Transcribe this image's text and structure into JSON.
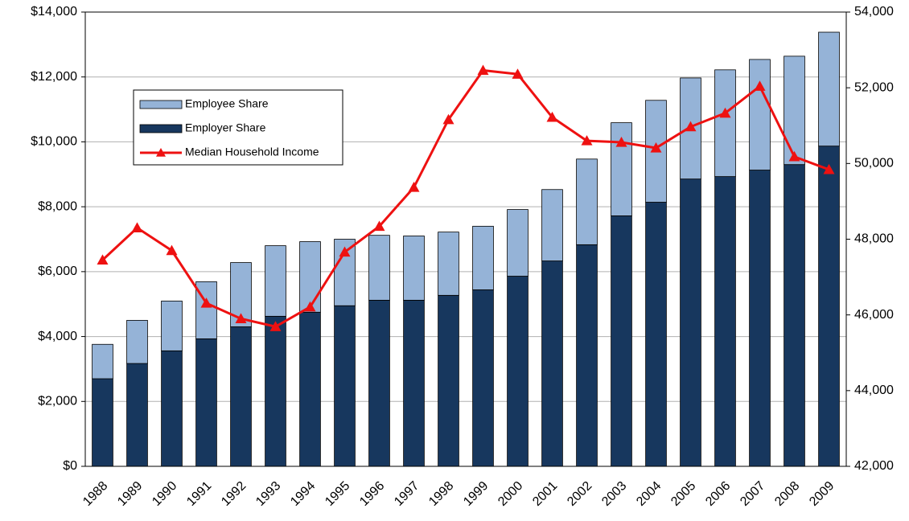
{
  "chart_data": {
    "type": "bar",
    "categories": [
      "1988",
      "1989",
      "1990",
      "1991",
      "1992",
      "1993",
      "1994",
      "1995",
      "1996",
      "1997",
      "1998",
      "1999",
      "2000",
      "2001",
      "2002",
      "2003",
      "2004",
      "2005",
      "2006",
      "2007",
      "2008",
      "2009"
    ],
    "series": [
      {
        "name": "Employer Share",
        "color": "#17375e",
        "values": [
          2700,
          3170,
          3560,
          3930,
          4300,
          4625,
          4750,
          4950,
          5120,
          5120,
          5270,
          5440,
          5860,
          6330,
          6830,
          7720,
          8140,
          8855,
          8930,
          9130,
          9300,
          9870
        ]
      },
      {
        "name": "Employee Share",
        "color": "#95b3d7",
        "values": [
          1060,
          1330,
          1535,
          1760,
          1980,
          2175,
          2175,
          2050,
          2000,
          1980,
          1950,
          1960,
          2055,
          2200,
          2640,
          2870,
          3140,
          3115,
          3290,
          3410,
          3340,
          3510
        ]
      },
      {
        "name": "Median Household Income",
        "color": "#ee1111",
        "type": "line",
        "axis": "y2",
        "values": [
          47450,
          48300,
          47700,
          46310,
          45900,
          45690,
          46210,
          47660,
          48340,
          49370,
          51160,
          52460,
          52360,
          51220,
          50600,
          50560,
          50410,
          50970,
          51330,
          52040,
          50180,
          49840
        ]
      }
    ],
    "stacked": true,
    "legend_order": [
      "Employee Share",
      "Employer Share",
      "Median Household Income"
    ],
    "ylim": [
      0,
      14000
    ],
    "yticks": [
      {
        "value": 0,
        "label": "$0"
      },
      {
        "value": 2000,
        "label": "$2,000"
      },
      {
        "value": 4000,
        "label": "$4,000"
      },
      {
        "value": 6000,
        "label": "$6,000"
      },
      {
        "value": 8000,
        "label": "$8,000"
      },
      {
        "value": 10000,
        "label": "$10,000"
      },
      {
        "value": 12000,
        "label": "$12,000"
      },
      {
        "value": 14000,
        "label": "$14,000"
      }
    ],
    "y2lim": [
      42000,
      54000
    ],
    "y2ticks": [
      {
        "value": 42000,
        "label": "42,000"
      },
      {
        "value": 44000,
        "label": "44,000"
      },
      {
        "value": 46000,
        "label": "46,000"
      },
      {
        "value": 48000,
        "label": "48,000"
      },
      {
        "value": 50000,
        "label": "50,000"
      },
      {
        "value": 52000,
        "label": "52,000"
      },
      {
        "value": 54000,
        "label": "54,000"
      }
    ],
    "grid": true
  }
}
